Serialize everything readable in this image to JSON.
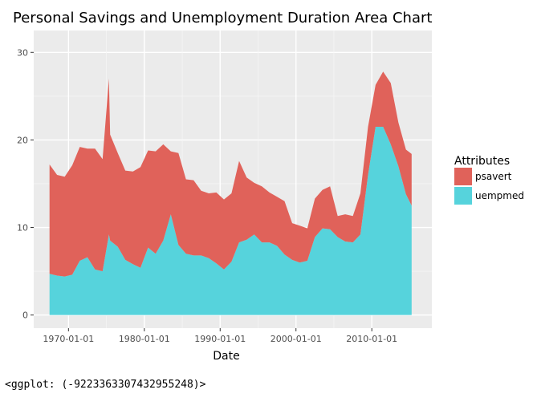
{
  "chart_data": {
    "type": "area",
    "stacked": true,
    "title": "Personal Savings and Unemployment Duration Area Chart",
    "xlabel": "Date",
    "ylabel": "",
    "x_tick_labels": [
      "1970-01-01",
      "1980-01-01",
      "1990-01-01",
      "2000-01-01",
      "2010-01-01"
    ],
    "x_ticks": [
      "1970-01-01",
      "1980-01-01",
      "1990-01-01",
      "2000-01-01",
      "2010-01-01"
    ],
    "xlim": [
      "1965-06-01",
      "2017-12-01"
    ],
    "y_ticks": [
      0,
      10,
      20,
      30
    ],
    "y_tick_labels": [
      "0",
      "10",
      "20",
      "30"
    ],
    "ylim": [
      -1.5,
      32.5
    ],
    "grid": true,
    "legend": {
      "title": "Attributes",
      "position": "right"
    },
    "x": [
      "1967-07-01",
      "1968-07-01",
      "1969-07-01",
      "1970-07-01",
      "1971-07-01",
      "1972-07-01",
      "1973-07-01",
      "1974-07-01",
      "1975-05-01",
      "1975-07-01",
      "1976-07-01",
      "1977-07-01",
      "1978-07-01",
      "1979-07-01",
      "1980-07-01",
      "1981-07-01",
      "1982-07-01",
      "1983-07-01",
      "1984-07-01",
      "1985-07-01",
      "1986-07-01",
      "1987-07-01",
      "1988-07-01",
      "1989-07-01",
      "1990-07-01",
      "1991-07-01",
      "1992-07-01",
      "1993-07-01",
      "1994-07-01",
      "1995-07-01",
      "1996-07-01",
      "1997-07-01",
      "1998-07-01",
      "1999-07-01",
      "2000-07-01",
      "2001-07-01",
      "2002-07-01",
      "2003-07-01",
      "2004-07-01",
      "2005-07-01",
      "2006-07-01",
      "2007-07-01",
      "2008-07-01",
      "2009-07-01",
      "2010-07-01",
      "2011-07-01",
      "2012-07-01",
      "2013-07-01",
      "2014-07-01",
      "2015-04-01"
    ],
    "series": [
      {
        "name": "uempmed",
        "color": "#56d3dc",
        "values": [
          4.7,
          4.5,
          4.4,
          4.6,
          6.2,
          6.6,
          5.2,
          5.0,
          9.2,
          8.5,
          7.8,
          6.3,
          5.8,
          5.4,
          7.7,
          7.0,
          8.5,
          11.5,
          8.0,
          7.0,
          6.8,
          6.8,
          6.5,
          5.9,
          5.2,
          6.1,
          8.3,
          8.6,
          9.2,
          8.3,
          8.3,
          7.9,
          6.9,
          6.3,
          6.0,
          6.2,
          8.9,
          9.9,
          9.8,
          8.9,
          8.4,
          8.3,
          9.2,
          16.0,
          21.5,
          21.5,
          19.5,
          17.0,
          13.8,
          12.5
        ]
      },
      {
        "name": "psavert",
        "color": "#e0625a",
        "values": [
          12.5,
          11.5,
          11.4,
          12.5,
          13.0,
          12.4,
          13.8,
          12.8,
          17.8,
          12.1,
          10.7,
          10.2,
          10.6,
          11.5,
          11.1,
          11.7,
          11.0,
          7.2,
          10.5,
          8.5,
          8.6,
          7.4,
          7.4,
          8.1,
          8.0,
          7.8,
          9.3,
          7.1,
          5.9,
          6.4,
          5.7,
          5.6,
          6.1,
          4.2,
          4.2,
          3.7,
          4.4,
          4.4,
          4.9,
          2.4,
          3.1,
          3.0,
          4.7,
          5.5,
          4.8,
          6.3,
          7.0,
          5.0,
          5.1,
          5.9
        ]
      }
    ]
  },
  "caption": "<ggplot: (-9223363307432955248)>"
}
